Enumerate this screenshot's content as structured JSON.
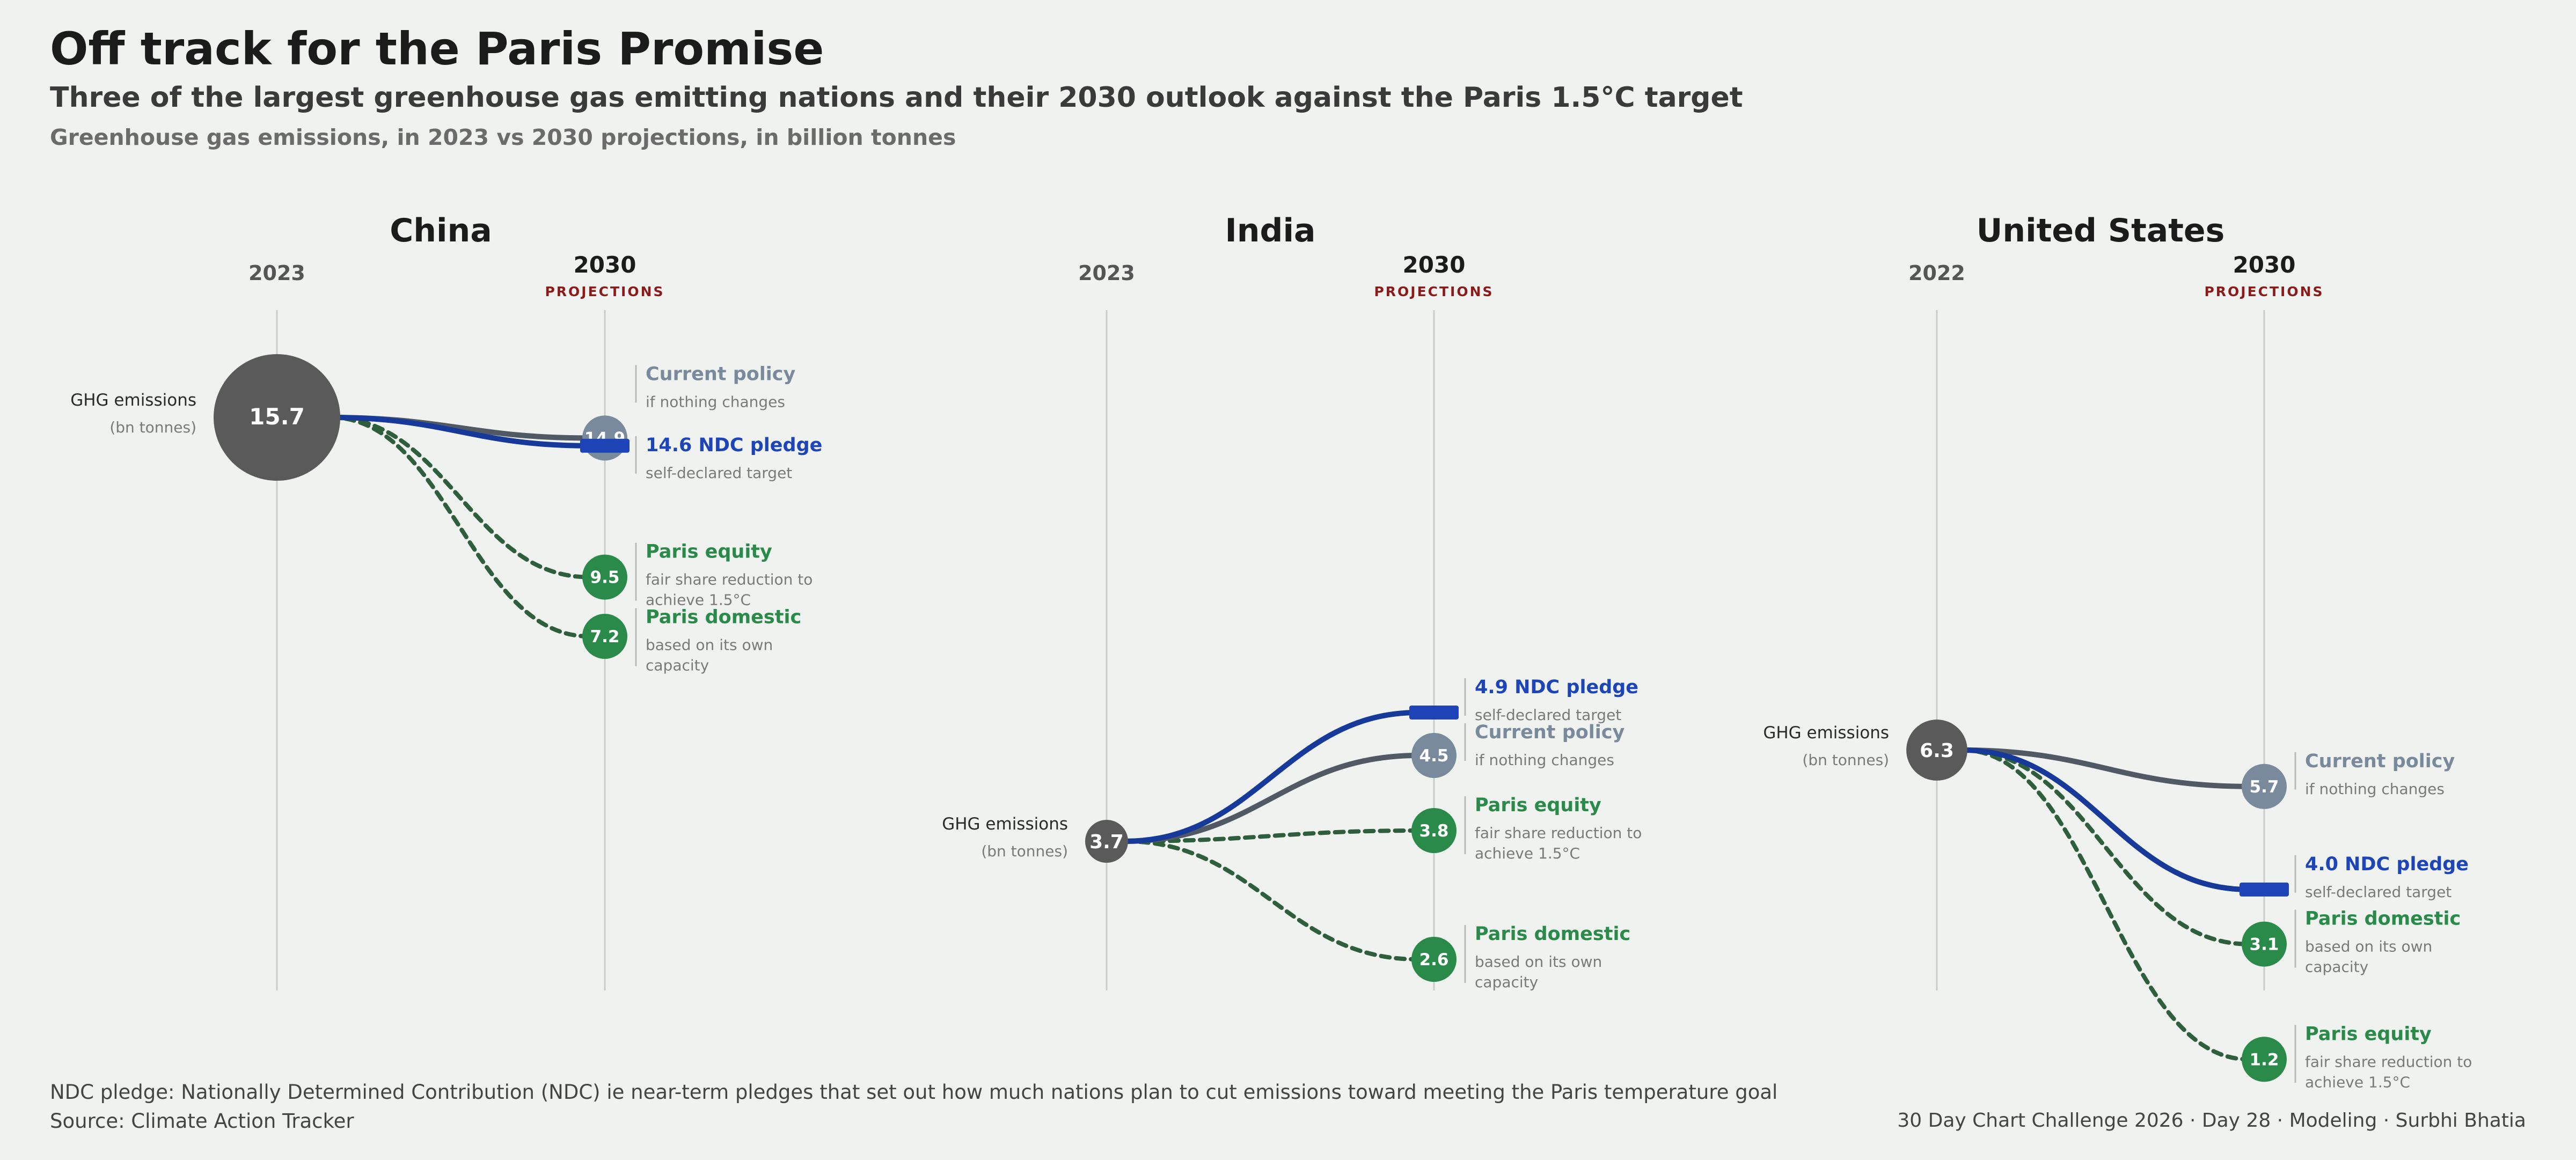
{
  "header": {
    "title": "Off track for the Paris Promise",
    "subtitle": "Three of the largest greenhouse gas emitting nations and their 2030 outlook against the Paris 1.5°C target",
    "measure": "Greenhouse gas emissions, in 2023 vs 2030 projections, in billion tonnes"
  },
  "footer": {
    "note": "NDC pledge: Nationally Determined Contribution (NDC) ie near-term pledges that set out how much nations plan to cut emissions toward meeting the Paris temperature goal",
    "source": "Source: Climate Action Tracker",
    "credit": "30 Day Chart Challenge 2026 · Day 28 · Modeling · Surbhi Bhatia"
  },
  "colors": {
    "baseline": "#5a5a5a",
    "current_policy": "#7a8a9d",
    "ndc_pledge": "#1e45b8",
    "paris": "#2a8a4a",
    "paris_line": "#2e5e3b",
    "projections_label": "#8b1a1a",
    "axis": "#c9cdc9"
  },
  "chart_data": [
    {
      "type": "slope",
      "title": "China",
      "start_year": "2023",
      "end_year": "2030",
      "end_sublabel": "PROJECTIONS",
      "start": {
        "label": "GHG emissions",
        "sublabel": "(bn tonnes)",
        "value": 15.7
      },
      "end": [
        {
          "key": "current_policy",
          "name": "Current policy",
          "desc": [
            "if nothing changes"
          ],
          "value": 14.9
        },
        {
          "key": "ndc_pledge",
          "name": "14.6 NDC pledge",
          "desc": [
            "self-declared target"
          ],
          "value": 14.6
        },
        {
          "key": "paris_equity",
          "name": "Paris equity",
          "desc": [
            "fair share reduction to",
            "achieve 1.5°C"
          ],
          "value": 9.5
        },
        {
          "key": "paris_domestic",
          "name": "Paris domestic",
          "desc": [
            "based on its own",
            "capacity"
          ],
          "value": 7.2
        }
      ]
    },
    {
      "type": "slope",
      "title": "India",
      "start_year": "2023",
      "end_year": "2030",
      "end_sublabel": "PROJECTIONS",
      "start": {
        "label": "GHG emissions",
        "sublabel": "(bn tonnes)",
        "value": 3.7
      },
      "end": [
        {
          "key": "ndc_pledge",
          "name": "4.9 NDC pledge",
          "desc": [
            "self-declared target"
          ],
          "value": 4.9
        },
        {
          "key": "current_policy",
          "name": "Current policy",
          "desc": [
            "if nothing changes"
          ],
          "value": 4.5
        },
        {
          "key": "paris_equity",
          "name": "Paris equity",
          "desc": [
            "fair share reduction to",
            "achieve 1.5°C"
          ],
          "value": 3.8
        },
        {
          "key": "paris_domestic",
          "name": "Paris domestic",
          "desc": [
            "based on its own",
            "capacity"
          ],
          "value": 2.6
        }
      ]
    },
    {
      "type": "slope",
      "title": "United States",
      "start_year": "2022",
      "end_year": "2030",
      "end_sublabel": "PROJECTIONS",
      "start": {
        "label": "GHG emissions",
        "sublabel": "(bn tonnes)",
        "value": 6.3
      },
      "end": [
        {
          "key": "current_policy",
          "name": "Current policy",
          "desc": [
            "if nothing changes"
          ],
          "value": 5.7
        },
        {
          "key": "ndc_pledge",
          "name": "4.0 NDC pledge",
          "desc": [
            "self-declared target"
          ],
          "value": 4.0
        },
        {
          "key": "paris_domestic",
          "name": "Paris domestic",
          "desc": [
            "based on its own",
            "capacity"
          ],
          "value": 3.1
        },
        {
          "key": "paris_equity",
          "name": "Paris equity",
          "desc": [
            "fair share reduction to",
            "achieve 1.5°C"
          ],
          "value": 1.2
        }
      ]
    }
  ]
}
